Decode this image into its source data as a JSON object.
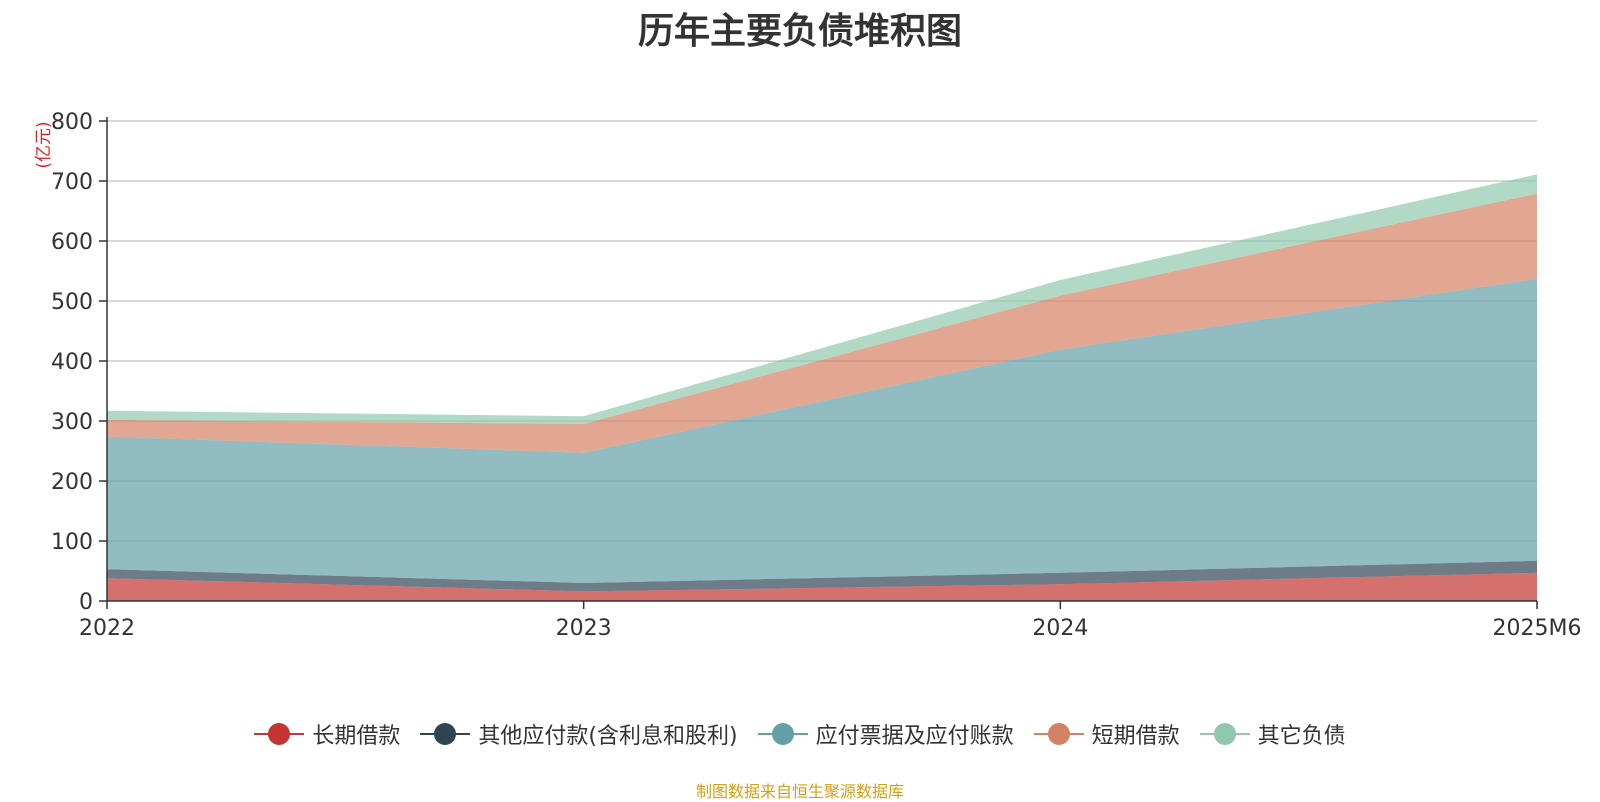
{
  "chart_data": {
    "type": "area",
    "stacked": true,
    "title": "历年主要负债堆积图",
    "ylabel": "(亿元)",
    "x": [
      "2022",
      "2023",
      "2024",
      "2025M6"
    ],
    "ylim": [
      0,
      800
    ],
    "yticks": [
      "0",
      "100",
      "200",
      "300",
      "400",
      "500",
      "600",
      "700",
      "800"
    ],
    "grid": true,
    "legend_position": "bottom",
    "series": [
      {
        "name": "长期借款",
        "values": [
          38,
          16,
          28,
          47
        ],
        "color": "#c23531"
      },
      {
        "name": "其他应付款(含利息和股利)",
        "values": [
          15,
          14,
          19,
          20
        ],
        "color": "#2f4554"
      },
      {
        "name": "应付票据及应付账款",
        "values": [
          221,
          217,
          372,
          470
        ],
        "color": "#61a0a8"
      },
      {
        "name": "短期借款",
        "values": [
          28,
          48,
          90,
          142
        ],
        "color": "#d48265"
      },
      {
        "name": "其它负债",
        "values": [
          15,
          13,
          26,
          32
        ],
        "color": "#91c7ae"
      }
    ]
  },
  "source": "制图数据来自恒生聚源数据库"
}
